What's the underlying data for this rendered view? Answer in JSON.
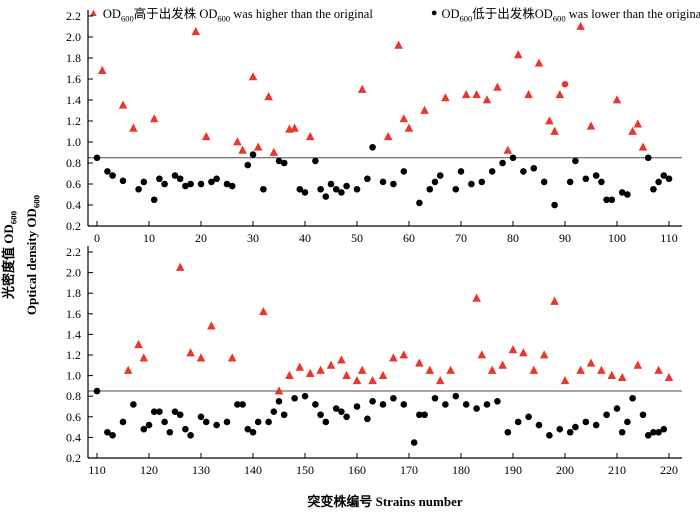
{
  "chart_data": {
    "type": "scatter",
    "title": "",
    "xlabel": "突变株编号 Strains number",
    "ylabel": "光密度值 Optical density OD_{600}",
    "ylabel_lines": [
      "光密度值 OD_{600}",
      "Optical density OD_{600}"
    ],
    "reference_line_y": 0.85,
    "marker_glyphs": {
      "triangle": "▲",
      "circle": "●"
    },
    "colors": {
      "higher": "#e8382d",
      "lower": "#000000",
      "reference_line": "#4d4d4d",
      "axis": "#000000"
    },
    "legend": [
      {
        "marker": "triangle",
        "color": "#e8382d",
        "label": "OD_{600}高于出发株 OD_{600} was higher than the original"
      },
      {
        "marker": "circle",
        "color": "#000000",
        "label": "OD_{600}低于出发株OD_{600} was lower than the original"
      }
    ],
    "panels": [
      {
        "xticks": [
          0,
          10,
          20,
          30,
          40,
          50,
          60,
          70,
          80,
          90,
          100,
          110
        ],
        "yticks": [
          0.2,
          0.4,
          0.6,
          0.8,
          1.0,
          1.2,
          1.4,
          1.6,
          1.8,
          2.0,
          2.2
        ],
        "ylim": [
          0.2,
          2.2
        ],
        "series": [
          {
            "name": "higher-than-original",
            "marker": "triangle",
            "color": "#e8382d",
            "points": [
              [
                1,
                1.68
              ],
              [
                5,
                1.35
              ],
              [
                7,
                1.13
              ],
              [
                11,
                1.22
              ],
              [
                19,
                2.05
              ],
              [
                21,
                1.05
              ],
              [
                27,
                1.0
              ],
              [
                28,
                0.92
              ],
              [
                30,
                1.62
              ],
              [
                31,
                0.95
              ],
              [
                33,
                1.43
              ],
              [
                34,
                0.9
              ],
              [
                37,
                1.12
              ],
              [
                38,
                1.13
              ],
              [
                41,
                1.05
              ],
              [
                51,
                1.5
              ],
              [
                56,
                1.05
              ],
              [
                58,
                1.92
              ],
              [
                59,
                1.22
              ],
              [
                60,
                1.13
              ],
              [
                63,
                1.3
              ],
              [
                67,
                1.42
              ],
              [
                71,
                1.45
              ],
              [
                73,
                1.45
              ],
              [
                75,
                1.4
              ],
              [
                77,
                1.52
              ],
              [
                79,
                0.92
              ],
              [
                81,
                1.83
              ],
              [
                83,
                1.45
              ],
              [
                85,
                1.75
              ],
              [
                87,
                1.2
              ],
              [
                88,
                1.1
              ],
              [
                89,
                1.45
              ],
              [
                93,
                2.1
              ],
              [
                95,
                1.15
              ],
              [
                100,
                1.4
              ],
              [
                103,
                1.1
              ],
              [
                104,
                1.17
              ],
              [
                105,
                0.95
              ]
            ]
          },
          {
            "name": "higher-than-original-dot",
            "marker": "circle",
            "color": "#e8382d",
            "points": [
              [
                90,
                1.55
              ]
            ]
          },
          {
            "name": "lower-than-original",
            "marker": "circle",
            "color": "#000000",
            "points": [
              [
                0,
                0.85
              ],
              [
                2,
                0.72
              ],
              [
                3,
                0.68
              ],
              [
                5,
                0.63
              ],
              [
                8,
                0.55
              ],
              [
                9,
                0.62
              ],
              [
                11,
                0.45
              ],
              [
                12,
                0.65
              ],
              [
                13,
                0.6
              ],
              [
                15,
                0.68
              ],
              [
                16,
                0.65
              ],
              [
                17,
                0.58
              ],
              [
                18,
                0.6
              ],
              [
                20,
                0.6
              ],
              [
                22,
                0.62
              ],
              [
                23,
                0.65
              ],
              [
                25,
                0.6
              ],
              [
                26,
                0.58
              ],
              [
                29,
                0.78
              ],
              [
                30,
                0.88
              ],
              [
                32,
                0.55
              ],
              [
                35,
                0.82
              ],
              [
                36,
                0.8
              ],
              [
                39,
                0.55
              ],
              [
                40,
                0.52
              ],
              [
                42,
                0.82
              ],
              [
                43,
                0.55
              ],
              [
                44,
                0.48
              ],
              [
                45,
                0.6
              ],
              [
                46,
                0.55
              ],
              [
                47,
                0.52
              ],
              [
                48,
                0.58
              ],
              [
                50,
                0.55
              ],
              [
                52,
                0.65
              ],
              [
                53,
                0.95
              ],
              [
                55,
                0.62
              ],
              [
                57,
                0.6
              ],
              [
                59,
                0.72
              ],
              [
                62,
                0.42
              ],
              [
                64,
                0.55
              ],
              [
                65,
                0.62
              ],
              [
                66,
                0.68
              ],
              [
                69,
                0.55
              ],
              [
                70,
                0.72
              ],
              [
                72,
                0.6
              ],
              [
                74,
                0.62
              ],
              [
                76,
                0.72
              ],
              [
                78,
                0.8
              ],
              [
                80,
                0.85
              ],
              [
                82,
                0.72
              ],
              [
                84,
                0.75
              ],
              [
                86,
                0.62
              ],
              [
                88,
                0.4
              ],
              [
                91,
                0.62
              ],
              [
                92,
                0.82
              ],
              [
                94,
                0.65
              ],
              [
                96,
                0.68
              ],
              [
                97,
                0.62
              ],
              [
                98,
                0.45
              ],
              [
                99,
                0.45
              ],
              [
                101,
                0.52
              ],
              [
                102,
                0.5
              ],
              [
                106,
                0.85
              ],
              [
                107,
                0.55
              ],
              [
                108,
                0.62
              ],
              [
                109,
                0.68
              ],
              [
                110,
                0.65
              ]
            ]
          }
        ]
      },
      {
        "xticks": [
          110,
          120,
          130,
          140,
          150,
          160,
          170,
          180,
          190,
          200,
          210,
          220
        ],
        "yticks": [
          0.2,
          0.4,
          0.6,
          0.8,
          1.0,
          1.2,
          1.4,
          1.6,
          1.8,
          2.0,
          2.2
        ],
        "ylim": [
          0.2,
          2.2
        ],
        "series": [
          {
            "name": "higher-than-original",
            "marker": "triangle",
            "color": "#e8382d",
            "points": [
              [
                116,
                1.05
              ],
              [
                118,
                1.3
              ],
              [
                119,
                1.17
              ],
              [
                126,
                2.05
              ],
              [
                128,
                1.22
              ],
              [
                130,
                1.17
              ],
              [
                132,
                1.48
              ],
              [
                136,
                1.17
              ],
              [
                142,
                1.62
              ],
              [
                145,
                0.85
              ],
              [
                147,
                1.0
              ],
              [
                149,
                1.08
              ],
              [
                151,
                1.02
              ],
              [
                153,
                1.05
              ],
              [
                155,
                1.1
              ],
              [
                157,
                1.15
              ],
              [
                158,
                1.0
              ],
              [
                160,
                0.95
              ],
              [
                161,
                1.05
              ],
              [
                163,
                0.95
              ],
              [
                165,
                1.0
              ],
              [
                167,
                1.17
              ],
              [
                169,
                1.2
              ],
              [
                172,
                1.12
              ],
              [
                174,
                1.05
              ],
              [
                176,
                0.95
              ],
              [
                178,
                1.05
              ],
              [
                183,
                1.75
              ],
              [
                184,
                1.2
              ],
              [
                186,
                1.05
              ],
              [
                188,
                1.1
              ],
              [
                190,
                1.25
              ],
              [
                192,
                1.22
              ],
              [
                194,
                1.05
              ],
              [
                196,
                1.2
              ],
              [
                198,
                1.72
              ],
              [
                200,
                0.95
              ],
              [
                203,
                1.05
              ],
              [
                205,
                1.12
              ],
              [
                207,
                1.05
              ],
              [
                209,
                1.0
              ],
              [
                211,
                0.98
              ],
              [
                214,
                1.1
              ],
              [
                218,
                1.05
              ],
              [
                220,
                0.98
              ]
            ]
          },
          {
            "name": "lower-than-original",
            "marker": "circle",
            "color": "#000000",
            "points": [
              [
                110,
                0.85
              ],
              [
                112,
                0.45
              ],
              [
                113,
                0.42
              ],
              [
                115,
                0.55
              ],
              [
                117,
                0.72
              ],
              [
                119,
                0.48
              ],
              [
                120,
                0.52
              ],
              [
                121,
                0.65
              ],
              [
                122,
                0.65
              ],
              [
                123,
                0.55
              ],
              [
                124,
                0.45
              ],
              [
                125,
                0.65
              ],
              [
                126,
                0.62
              ],
              [
                127,
                0.48
              ],
              [
                128,
                0.42
              ],
              [
                130,
                0.6
              ],
              [
                131,
                0.55
              ],
              [
                133,
                0.52
              ],
              [
                135,
                0.55
              ],
              [
                137,
                0.72
              ],
              [
                138,
                0.72
              ],
              [
                139,
                0.48
              ],
              [
                140,
                0.45
              ],
              [
                141,
                0.55
              ],
              [
                143,
                0.55
              ],
              [
                144,
                0.65
              ],
              [
                145,
                0.75
              ],
              [
                146,
                0.62
              ],
              [
                148,
                0.78
              ],
              [
                150,
                0.8
              ],
              [
                152,
                0.72
              ],
              [
                153,
                0.62
              ],
              [
                154,
                0.55
              ],
              [
                156,
                0.68
              ],
              [
                157,
                0.65
              ],
              [
                158,
                0.6
              ],
              [
                160,
                0.7
              ],
              [
                162,
                0.58
              ],
              [
                163,
                0.75
              ],
              [
                165,
                0.72
              ],
              [
                167,
                0.78
              ],
              [
                169,
                0.72
              ],
              [
                171,
                0.35
              ],
              [
                172,
                0.62
              ],
              [
                173,
                0.62
              ],
              [
                175,
                0.78
              ],
              [
                177,
                0.72
              ],
              [
                179,
                0.8
              ],
              [
                181,
                0.72
              ],
              [
                183,
                0.68
              ],
              [
                185,
                0.72
              ],
              [
                187,
                0.75
              ],
              [
                189,
                0.45
              ],
              [
                191,
                0.55
              ],
              [
                193,
                0.6
              ],
              [
                195,
                0.52
              ],
              [
                197,
                0.42
              ],
              [
                199,
                0.48
              ],
              [
                201,
                0.45
              ],
              [
                202,
                0.5
              ],
              [
                204,
                0.55
              ],
              [
                206,
                0.52
              ],
              [
                208,
                0.62
              ],
              [
                210,
                0.68
              ],
              [
                211,
                0.45
              ],
              [
                212,
                0.55
              ],
              [
                213,
                0.78
              ],
              [
                215,
                0.62
              ],
              [
                216,
                0.42
              ],
              [
                217,
                0.45
              ],
              [
                218,
                0.45
              ],
              [
                219,
                0.48
              ]
            ]
          }
        ]
      }
    ]
  }
}
